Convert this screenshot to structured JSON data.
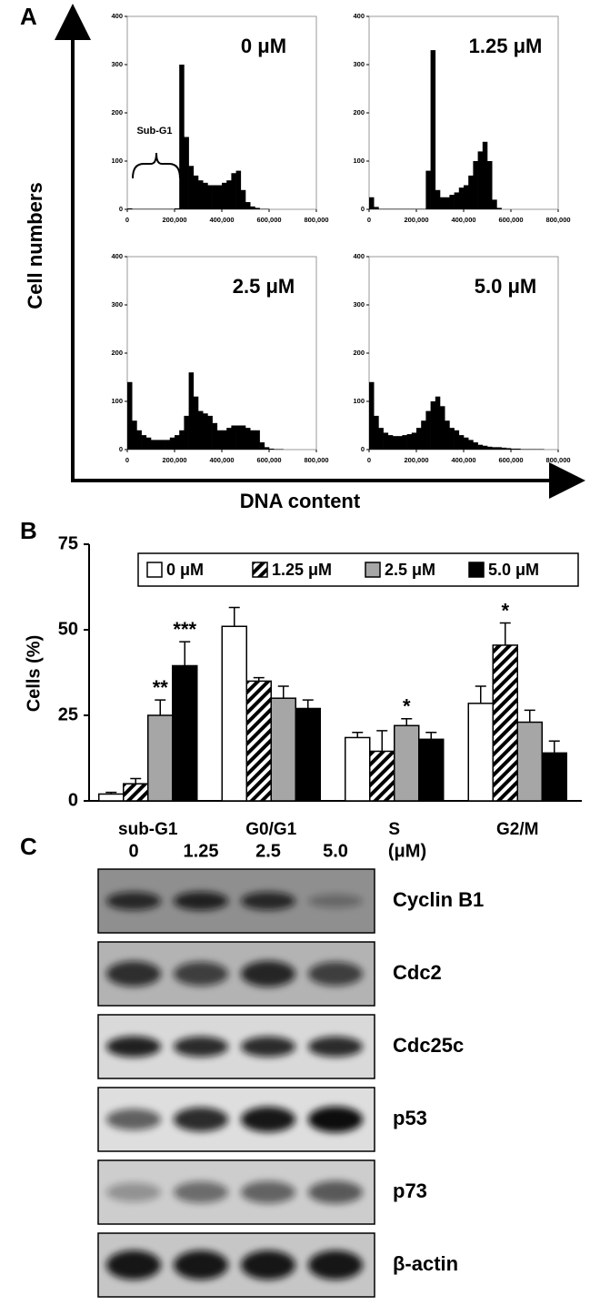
{
  "panel_a": {
    "panel": "A",
    "ylabel": "Cell numbers",
    "xlabel": "DNA content"
  },
  "chart_data": [
    {
      "type": "histogram",
      "title": "0 μM",
      "annotation": "Sub-G1",
      "color": "#000000",
      "bins": [
        0,
        20000,
        40000,
        60000,
        80000,
        100000,
        120000,
        140000,
        160000,
        180000,
        200000,
        220000,
        240000,
        260000,
        280000,
        300000,
        320000,
        340000,
        360000,
        380000,
        400000,
        420000,
        440000,
        460000,
        480000,
        500000,
        520000,
        540000,
        560000,
        580000,
        600000,
        620000,
        640000,
        660000,
        680000,
        700000,
        720000,
        740000,
        760000,
        780000,
        800000
      ],
      "counts": [
        2,
        1,
        1,
        1,
        1,
        1,
        1,
        1,
        1,
        1,
        2,
        300,
        150,
        90,
        70,
        60,
        55,
        50,
        50,
        50,
        55,
        60,
        75,
        80,
        40,
        15,
        6,
        3,
        1,
        1,
        0,
        0,
        0,
        0,
        0,
        0,
        0,
        0,
        0,
        0
      ],
      "xlim": [
        0,
        800000
      ],
      "xticks": [
        0,
        {
          "value": 200000,
          "label": "200,000"
        },
        {
          "value": 400000,
          "label": "400,000"
        },
        {
          "value": 600000,
          "label": "600,000"
        },
        {
          "value": 800000,
          "label": "800,000"
        }
      ],
      "ylim": [
        0,
        400
      ],
      "yticks": [
        0,
        100,
        200,
        300,
        400
      ]
    },
    {
      "type": "histogram",
      "title": "1.25 μM",
      "color": "#000000",
      "bins": [
        0,
        20000,
        40000,
        60000,
        80000,
        100000,
        120000,
        140000,
        160000,
        180000,
        200000,
        220000,
        240000,
        260000,
        280000,
        300000,
        320000,
        340000,
        360000,
        380000,
        400000,
        420000,
        440000,
        460000,
        480000,
        500000,
        520000,
        540000,
        560000,
        580000,
        600000,
        620000,
        640000,
        660000,
        680000,
        700000,
        720000,
        740000,
        760000,
        780000,
        800000
      ],
      "counts": [
        25,
        5,
        1,
        1,
        1,
        1,
        1,
        1,
        1,
        1,
        1,
        1,
        80,
        330,
        40,
        25,
        25,
        30,
        35,
        45,
        50,
        70,
        100,
        120,
        140,
        100,
        20,
        3,
        0,
        0,
        0,
        0,
        0,
        0,
        0,
        0,
        0,
        0,
        0,
        0
      ],
      "xlim": [
        0,
        800000
      ],
      "xticks": [
        0,
        {
          "value": 200000,
          "label": "200,000"
        },
        {
          "value": 400000,
          "label": "400,000"
        },
        {
          "value": 600000,
          "label": "600,000"
        },
        {
          "value": 800000,
          "label": "800,000"
        }
      ],
      "ylim": [
        0,
        400
      ],
      "yticks": [
        0,
        100,
        200,
        300,
        400
      ]
    },
    {
      "type": "histogram",
      "title": "2.5 μM",
      "color": "#000000",
      "bins": [
        0,
        20000,
        40000,
        60000,
        80000,
        100000,
        120000,
        140000,
        160000,
        180000,
        200000,
        220000,
        240000,
        260000,
        280000,
        300000,
        320000,
        340000,
        360000,
        380000,
        400000,
        420000,
        440000,
        460000,
        480000,
        500000,
        520000,
        540000,
        560000,
        580000,
        600000,
        620000,
        640000,
        660000,
        680000,
        700000,
        720000,
        740000,
        760000,
        780000,
        800000
      ],
      "counts": [
        140,
        60,
        40,
        30,
        25,
        20,
        20,
        20,
        20,
        25,
        30,
        40,
        70,
        160,
        110,
        80,
        75,
        70,
        55,
        40,
        40,
        45,
        50,
        50,
        50,
        45,
        40,
        40,
        15,
        5,
        2,
        1,
        1,
        0,
        0,
        0,
        0,
        0,
        0,
        0
      ],
      "xlim": [
        0,
        800000
      ],
      "xticks": [
        0,
        {
          "value": 200000,
          "label": "200,000"
        },
        {
          "value": 400000,
          "label": "400,000"
        },
        {
          "value": 600000,
          "label": "600,000"
        },
        {
          "value": 800000,
          "label": "800,000"
        }
      ],
      "ylim": [
        0,
        400
      ],
      "yticks": [
        0,
        100,
        200,
        300,
        400
      ]
    },
    {
      "type": "histogram",
      "title": "5.0 μM",
      "color": "#000000",
      "bins": [
        0,
        20000,
        40000,
        60000,
        80000,
        100000,
        120000,
        140000,
        160000,
        180000,
        200000,
        220000,
        240000,
        260000,
        280000,
        300000,
        320000,
        340000,
        360000,
        380000,
        400000,
        420000,
        440000,
        460000,
        480000,
        500000,
        520000,
        540000,
        560000,
        580000,
        600000,
        620000,
        640000,
        660000,
        680000,
        700000,
        720000,
        740000,
        760000,
        780000,
        800000
      ],
      "counts": [
        140,
        70,
        45,
        35,
        30,
        28,
        28,
        30,
        32,
        35,
        45,
        60,
        80,
        100,
        110,
        90,
        60,
        45,
        40,
        30,
        25,
        20,
        15,
        10,
        8,
        6,
        5,
        5,
        4,
        3,
        2,
        2,
        1,
        1,
        1,
        1,
        1,
        0,
        0,
        0
      ],
      "xlim": [
        0,
        800000
      ],
      "xticks": [
        0,
        {
          "value": 200000,
          "label": "200,000"
        },
        {
          "value": 400000,
          "label": "400,000"
        },
        {
          "value": 600000,
          "label": "600,000"
        },
        {
          "value": 800000,
          "label": "800,000"
        }
      ],
      "ylim": [
        0,
        400
      ],
      "yticks": [
        0,
        100,
        200,
        300,
        400
      ]
    },
    {
      "type": "bar",
      "panel": "B",
      "ylabel": "Cells (%)",
      "categories": [
        "sub-G1",
        "G0/G1",
        "S",
        "G2/M"
      ],
      "ylim": [
        0,
        75
      ],
      "yticks": [
        0,
        25,
        50,
        75
      ],
      "series": [
        {
          "name": "0 μM",
          "color": "#ffffff",
          "values": [
            2,
            51,
            18.5,
            28.5
          ],
          "errors": [
            0.5,
            5.5,
            1.5,
            5
          ],
          "significance": [
            null,
            null,
            null,
            null
          ]
        },
        {
          "name": "1.25 μM",
          "color": "#ffffff",
          "fill_pattern": "diagonal",
          "values": [
            5,
            35,
            14.5,
            45.5
          ],
          "errors": [
            1.5,
            1,
            6,
            6.5
          ],
          "significance": [
            null,
            null,
            null,
            "*"
          ]
        },
        {
          "name": "2.5 μM",
          "color": "#a6a6a6",
          "values": [
            25,
            30,
            22,
            23
          ],
          "errors": [
            4.5,
            3.5,
            2,
            3.5
          ],
          "significance": [
            "**",
            null,
            "*",
            null
          ]
        },
        {
          "name": "5.0 μM",
          "color": "#000000",
          "values": [
            39.5,
            27,
            18,
            14
          ],
          "errors": [
            7,
            2.5,
            2,
            3.5
          ],
          "significance": [
            "***",
            null,
            null,
            null
          ]
        }
      ]
    }
  ],
  "blot": {
    "panel": "C",
    "lanes": [
      "0",
      "1.25",
      "2.5",
      "5.0"
    ],
    "unit": "(μM)",
    "proteins": [
      "Cyclin B1",
      "Cdc2",
      "Cdc25c",
      "p53",
      "p73",
      "β-actin"
    ]
  }
}
